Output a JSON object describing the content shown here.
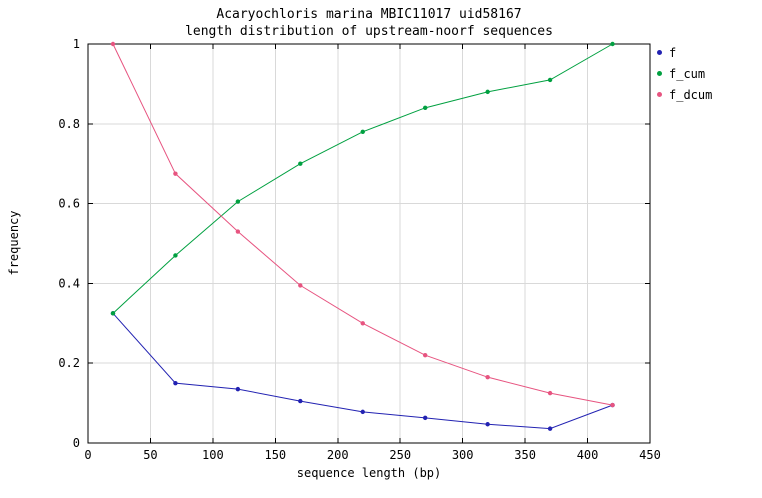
{
  "chart_data": {
    "type": "line",
    "title": "Acaryochloris marina MBIC11017 uid58167",
    "subtitle": "length distribution of upstream-noorf sequences",
    "xlabel": "sequence length (bp)",
    "ylabel": "frequency",
    "xlim": [
      0,
      450
    ],
    "ylim": [
      0,
      1
    ],
    "xticks": [
      0,
      50,
      100,
      150,
      200,
      250,
      300,
      350,
      400,
      450
    ],
    "yticks": [
      0,
      0.2,
      0.4,
      0.6,
      0.8,
      1
    ],
    "grid": true,
    "legend_position": "top-right-outside",
    "x": [
      20,
      70,
      120,
      170,
      220,
      270,
      320,
      370,
      420
    ],
    "series": [
      {
        "name": "f",
        "color": "#2222b2",
        "values": [
          0.325,
          0.15,
          0.135,
          0.105,
          0.078,
          0.063,
          0.047,
          0.036,
          0.095
        ]
      },
      {
        "name": "f_cum",
        "color": "#00a040",
        "values": [
          0.325,
          0.47,
          0.605,
          0.7,
          0.78,
          0.84,
          0.88,
          0.91,
          1.0
        ]
      },
      {
        "name": "f_dcum",
        "color": "#e75480",
        "values": [
          1.0,
          0.675,
          0.53,
          0.395,
          0.3,
          0.22,
          0.165,
          0.125,
          0.095
        ]
      }
    ],
    "colors": {
      "grid": "#d9d9d9",
      "border": "#000000",
      "background": "#ffffff"
    }
  }
}
